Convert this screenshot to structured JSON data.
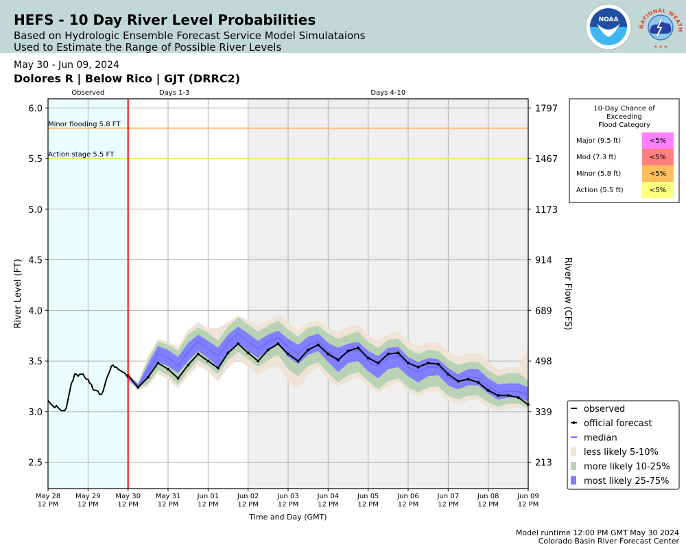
{
  "header": {
    "title": "HEFS - 10 Day River Level Probabilities",
    "subtitle_line1": "Based on Hydrologic Ensemble Forecast Service Model Simulataions",
    "subtitle_line2": "Used to Estimate the Range of Possible River Levels",
    "noaa_logo_text": "NOAA",
    "nws_logo_text": "NATIONAL WEATHER SERVICE",
    "background_color": "#c2d8d6"
  },
  "date_range": "May 30 - Jun 09, 2024",
  "station": "Dolores R | Below Rico | GJT (DRRC2)",
  "footer": {
    "runtime": "Model runtime 12:00 PM GMT May 30 2024",
    "center": "Colorado Basin River Forecast Center"
  },
  "flood_table": {
    "title_lines": [
      "10-Day Chance of",
      "Exceeding",
      "Flood Category"
    ],
    "rows": [
      {
        "label": "Major (9.5 ft)",
        "value": "<5%",
        "color": "#ff80ff"
      },
      {
        "label": "Mod (7.3 ft)",
        "value": "<5%",
        "color": "#ff7f7f"
      },
      {
        "label": "Minor (5.8 ft)",
        "value": "<5%",
        "color": "#ffbf5f"
      },
      {
        "label": "Action (5.5 ft)",
        "value": "<5%",
        "color": "#ffff7f"
      }
    ]
  },
  "chart_data": {
    "type": "line",
    "title": "HEFS - 10 Day River Level Probabilities",
    "xlabel": "Time and Day (GMT)",
    "ylabel": "River Level (FT)",
    "ylabel_right": "River Flow (CFS)",
    "x_unit": "hours since May 28 12 PM GMT",
    "xlim": [
      0,
      288
    ],
    "ylim": [
      2.24,
      6.09
    ],
    "grid": true,
    "x_ticks": [
      {
        "hour": 0,
        "line1": "May 28",
        "line2": "12 PM"
      },
      {
        "hour": 24,
        "line1": "May 29",
        "line2": "12 PM"
      },
      {
        "hour": 48,
        "line1": "May 30",
        "line2": "12 PM"
      },
      {
        "hour": 72,
        "line1": "May 31",
        "line2": "12 PM"
      },
      {
        "hour": 96,
        "line1": "Jun 01",
        "line2": "12 PM"
      },
      {
        "hour": 120,
        "line1": "Jun 02",
        "line2": "12 PM"
      },
      {
        "hour": 144,
        "line1": "Jun 03",
        "line2": "12 PM"
      },
      {
        "hour": 168,
        "line1": "Jun 04",
        "line2": "12 PM"
      },
      {
        "hour": 192,
        "line1": "Jun 05",
        "line2": "12 PM"
      },
      {
        "hour": 216,
        "line1": "Jun 06",
        "line2": "12 PM"
      },
      {
        "hour": 240,
        "line1": "Jun 07",
        "line2": "12 PM"
      },
      {
        "hour": 264,
        "line1": "Jun 08",
        "line2": "12 PM"
      },
      {
        "hour": 288,
        "line1": "Jun 09",
        "line2": "12 PM"
      }
    ],
    "y_ticks": [
      2.5,
      3.0,
      3.5,
      4.0,
      4.5,
      5.0,
      5.5,
      6.0
    ],
    "y_tick_labels": [
      "2.5",
      "3.0",
      "3.5",
      "4.0",
      "4.5",
      "5.0",
      "5.5",
      "6.0"
    ],
    "y_right_ticks": [
      {
        "stage": 2.5,
        "label": "213"
      },
      {
        "stage": 3.0,
        "label": "339"
      },
      {
        "stage": 3.5,
        "label": "498"
      },
      {
        "stage": 4.0,
        "label": "689"
      },
      {
        "stage": 4.5,
        "label": "914"
      },
      {
        "stage": 5.0,
        "label": "1173"
      },
      {
        "stage": 5.5,
        "label": "1467"
      },
      {
        "stage": 6.0,
        "label": "1797"
      }
    ],
    "regions": [
      {
        "label": "Observed",
        "start": 0,
        "end": 48,
        "color": "#e9fdfd"
      },
      {
        "label": "Days 1-3",
        "start": 48,
        "end": 120,
        "color": "#ffffff"
      },
      {
        "label": "Days 4-10",
        "start": 120,
        "end": 288,
        "color": "#efefef"
      }
    ],
    "forecast_start_hour": 48,
    "forecast_start_color": "#ff0000",
    "thresholds": [
      {
        "label": "Minor flooding 5.8 FT",
        "value": 5.8,
        "color": "#ffbf5f"
      },
      {
        "label": "Action stage 5.5 FT",
        "value": 5.5,
        "color": "#f0e86a"
      }
    ],
    "legend": {
      "position": "bottom-right",
      "entries": [
        {
          "label": "observed",
          "type": "line",
          "color": "#000000"
        },
        {
          "label": "official forecast",
          "type": "line-marker",
          "color": "#000000"
        },
        {
          "label": "median",
          "type": "line",
          "color": "#6a6aff"
        },
        {
          "label": "less likely 5-10%",
          "type": "patch",
          "color": "#efe3d6"
        },
        {
          "label": "more likely 10-25%",
          "type": "patch",
          "color": "#b7d3b3"
        },
        {
          "label": "most likely 25-75%",
          "type": "patch",
          "color": "#7f7fff"
        }
      ]
    },
    "observed": {
      "hours": [
        0,
        2,
        4,
        5,
        6,
        8,
        9,
        10,
        11,
        12,
        13,
        14,
        15,
        16,
        17,
        18,
        19,
        20,
        21,
        22,
        23,
        24,
        25,
        26,
        27,
        28,
        29,
        30,
        31,
        32,
        33,
        34,
        35,
        36,
        37,
        38,
        39,
        40,
        41,
        42,
        43,
        44,
        45,
        46,
        47,
        48
      ],
      "values": [
        3.11,
        3.07,
        3.04,
        3.06,
        3.04,
        3.01,
        3.01,
        3.01,
        3.04,
        3.12,
        3.2,
        3.28,
        3.31,
        3.37,
        3.37,
        3.35,
        3.37,
        3.37,
        3.37,
        3.34,
        3.32,
        3.32,
        3.28,
        3.27,
        3.22,
        3.21,
        3.21,
        3.2,
        3.17,
        3.17,
        3.2,
        3.26,
        3.32,
        3.36,
        3.4,
        3.45,
        3.46,
        3.44,
        3.44,
        3.42,
        3.41,
        3.4,
        3.39,
        3.38,
        3.36,
        3.33
      ]
    },
    "forecast_hours": [
      48,
      54,
      60,
      66,
      72,
      78,
      84,
      90,
      96,
      102,
      108,
      114,
      120,
      126,
      132,
      138,
      144,
      150,
      156,
      162,
      168,
      174,
      180,
      186,
      192,
      198,
      204,
      210,
      216,
      222,
      228,
      234,
      240,
      246,
      252,
      258,
      264,
      270,
      276,
      282,
      288
    ],
    "series": [
      {
        "name": "official forecast",
        "values": [
          3.36,
          3.24,
          3.34,
          3.48,
          3.42,
          3.33,
          3.46,
          3.57,
          3.5,
          3.43,
          3.58,
          3.67,
          3.58,
          3.5,
          3.61,
          3.67,
          3.57,
          3.5,
          3.61,
          3.66,
          3.57,
          3.51,
          3.6,
          3.63,
          3.53,
          3.48,
          3.57,
          3.58,
          3.48,
          3.44,
          3.48,
          3.47,
          3.37,
          3.3,
          3.32,
          3.29,
          3.21,
          3.16,
          3.16,
          3.14,
          3.07
        ]
      },
      {
        "name": "median",
        "values": [
          3.34,
          3.25,
          3.4,
          3.57,
          3.53,
          3.45,
          3.59,
          3.69,
          3.62,
          3.55,
          3.68,
          3.77,
          3.69,
          3.62,
          3.69,
          3.73,
          3.64,
          3.57,
          3.66,
          3.7,
          3.6,
          3.52,
          3.59,
          3.61,
          3.5,
          3.45,
          3.53,
          3.55,
          3.44,
          3.39,
          3.44,
          3.44,
          3.34,
          3.29,
          3.33,
          3.34,
          3.25,
          3.19,
          3.2,
          3.2,
          3.17
        ]
      },
      {
        "name": "most likely 25-75% (low)",
        "values": [
          3.32,
          3.23,
          3.35,
          3.49,
          3.45,
          3.38,
          3.5,
          3.6,
          3.53,
          3.44,
          3.59,
          3.68,
          3.6,
          3.53,
          3.61,
          3.66,
          3.54,
          3.47,
          3.56,
          3.6,
          3.49,
          3.39,
          3.48,
          3.5,
          3.4,
          3.33,
          3.42,
          3.44,
          3.35,
          3.29,
          3.35,
          3.36,
          3.26,
          3.22,
          3.26,
          3.26,
          3.18,
          3.12,
          3.14,
          3.14,
          3.1
        ]
      },
      {
        "name": "most likely 25-75% (high)",
        "values": [
          3.36,
          3.27,
          3.47,
          3.65,
          3.61,
          3.54,
          3.68,
          3.76,
          3.7,
          3.63,
          3.76,
          3.84,
          3.77,
          3.7,
          3.76,
          3.8,
          3.72,
          3.66,
          3.74,
          3.77,
          3.68,
          3.63,
          3.67,
          3.69,
          3.6,
          3.55,
          3.63,
          3.64,
          3.54,
          3.49,
          3.53,
          3.52,
          3.43,
          3.37,
          3.42,
          3.42,
          3.33,
          3.27,
          3.28,
          3.28,
          3.24
        ]
      },
      {
        "name": "more likely 10-25% (low)",
        "values": [
          3.31,
          3.22,
          3.28,
          3.41,
          3.36,
          3.27,
          3.4,
          3.51,
          3.45,
          3.37,
          3.51,
          3.59,
          3.52,
          3.44,
          3.51,
          3.56,
          3.42,
          3.35,
          3.45,
          3.49,
          3.38,
          3.29,
          3.36,
          3.39,
          3.3,
          3.22,
          3.3,
          3.33,
          3.24,
          3.19,
          3.24,
          3.25,
          3.16,
          3.12,
          3.16,
          3.16,
          3.09,
          3.05,
          3.08,
          3.08,
          3.04
        ]
      },
      {
        "name": "more likely 10-25% (high)",
        "values": [
          3.37,
          3.28,
          3.52,
          3.69,
          3.66,
          3.6,
          3.76,
          3.83,
          3.78,
          3.7,
          3.84,
          3.93,
          3.86,
          3.79,
          3.85,
          3.9,
          3.81,
          3.74,
          3.83,
          3.85,
          3.77,
          3.72,
          3.76,
          3.79,
          3.69,
          3.63,
          3.71,
          3.72,
          3.62,
          3.57,
          3.61,
          3.6,
          3.51,
          3.46,
          3.49,
          3.49,
          3.41,
          3.35,
          3.38,
          3.38,
          3.31
        ]
      },
      {
        "name": "less likely 5-10% (low)",
        "values": [
          3.3,
          3.21,
          3.25,
          3.37,
          3.32,
          3.23,
          3.35,
          3.46,
          3.4,
          3.3,
          3.43,
          3.52,
          3.44,
          3.36,
          3.42,
          3.46,
          3.3,
          3.22,
          3.36,
          3.43,
          3.32,
          3.24,
          3.3,
          3.34,
          3.25,
          3.18,
          3.25,
          3.29,
          3.2,
          3.15,
          3.2,
          3.2,
          3.11,
          3.07,
          3.11,
          3.12,
          3.04,
          3.01,
          3.04,
          3.04,
          3.01
        ]
      },
      {
        "name": "less likely 5-10% (high)",
        "values": [
          3.38,
          3.29,
          3.55,
          3.72,
          3.69,
          3.64,
          3.81,
          3.88,
          3.82,
          3.83,
          3.88,
          3.95,
          3.9,
          3.86,
          3.9,
          3.95,
          3.88,
          3.81,
          3.88,
          3.9,
          3.82,
          3.79,
          3.84,
          3.86,
          3.75,
          3.7,
          3.77,
          3.79,
          3.69,
          3.65,
          3.68,
          3.68,
          3.59,
          3.54,
          3.58,
          3.58,
          3.5,
          3.41,
          3.44,
          3.44,
          3.62
        ]
      }
    ]
  }
}
